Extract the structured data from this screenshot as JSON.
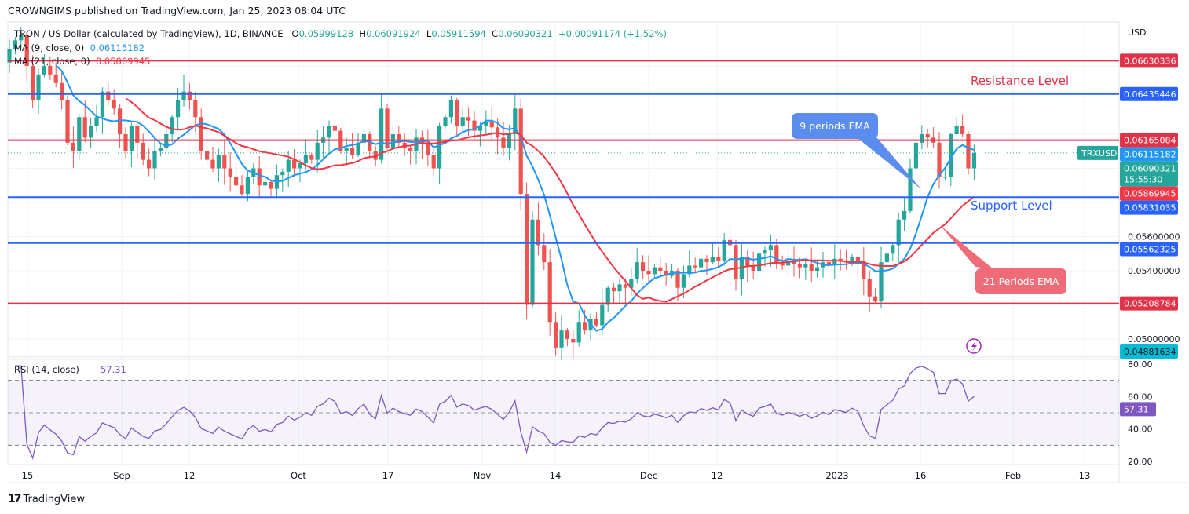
{
  "header": {
    "published": "CROWNGIMS published on TradingView.com, Jan 25, 2023 08:04 UTC"
  },
  "legend": {
    "symbol": "TRON / US Dollar (calculated by TradingView), 1D, BINANCE",
    "o_label": "O",
    "o": "0.05999128",
    "h_label": "H",
    "h": "0.06091924",
    "l_label": "L",
    "l": "0.05911594",
    "c_label": "C",
    "c": "0.06090321",
    "change": "+0.00091174 (+1.52%)",
    "ma9_label": "MA (9, close, 0)",
    "ma9": "0.06115182",
    "ma21_label": "MA (21, close, 0)",
    "ma21": "0.05869945"
  },
  "footer": {
    "brand": "TradingView"
  },
  "colors": {
    "up": "#26a69a",
    "down": "#ef5350",
    "ma9": "#2196f3",
    "ma21": "#f23645",
    "rsi": "#7e57c2",
    "blue_line": "#2962ff",
    "red_line": "#e0334a"
  },
  "chart_data": {
    "type": "candlestick",
    "currency": "USD",
    "symbol_tag": "TRXUSD",
    "last_price": "0.06090321",
    "countdown": "15:55:30",
    "price_ticks": [
      "0.05000000",
      "0.05400000",
      "0.05600000"
    ],
    "ylim": [
      0.0482,
      0.069
    ],
    "closes": [
      0.067,
      0.0675,
      0.0678,
      0.066,
      0.064,
      0.0655,
      0.066,
      0.0655,
      0.065,
      0.064,
      0.0615,
      0.061,
      0.063,
      0.0618,
      0.0625,
      0.063,
      0.0645,
      0.064,
      0.0635,
      0.062,
      0.061,
      0.0625,
      0.0615,
      0.0605,
      0.06,
      0.061,
      0.0612,
      0.062,
      0.063,
      0.064,
      0.0645,
      0.064,
      0.063,
      0.061,
      0.0605,
      0.06,
      0.0608,
      0.06,
      0.0595,
      0.059,
      0.0585,
      0.0595,
      0.06,
      0.059,
      0.0592,
      0.0588,
      0.0596,
      0.0598,
      0.0605,
      0.06,
      0.0603,
      0.0608,
      0.0605,
      0.0615,
      0.0618,
      0.0625,
      0.0622,
      0.061,
      0.0612,
      0.0608,
      0.0615,
      0.062,
      0.061,
      0.0605,
      0.0635,
      0.0612,
      0.062,
      0.0615,
      0.0612,
      0.061,
      0.0618,
      0.0615,
      0.0608,
      0.06,
      0.0625,
      0.063,
      0.064,
      0.0625,
      0.063,
      0.0628,
      0.0622,
      0.0625,
      0.0627,
      0.0624,
      0.0618,
      0.0612,
      0.062,
      0.0635,
      0.0585,
      0.052,
      0.057,
      0.0555,
      0.0545,
      0.051,
      0.0495,
      0.0505,
      0.05,
      0.0498,
      0.051,
      0.0505,
      0.0512,
      0.0508,
      0.052,
      0.053,
      0.0528,
      0.0532,
      0.053,
      0.0535,
      0.0545,
      0.054,
      0.0538,
      0.0542,
      0.054,
      0.0537,
      0.054,
      0.053,
      0.0538,
      0.0543,
      0.0542,
      0.0547,
      0.0545,
      0.0548,
      0.0546,
      0.0558,
      0.0555,
      0.0535,
      0.0548,
      0.0543,
      0.054,
      0.055,
      0.0552,
      0.0555,
      0.0545,
      0.0543,
      0.0546,
      0.0544,
      0.0542,
      0.0544,
      0.054,
      0.0542,
      0.0545,
      0.0543,
      0.0547,
      0.0546,
      0.0545,
      0.0548,
      0.0546,
      0.0535,
      0.0525,
      0.0522,
      0.0545,
      0.055,
      0.0555,
      0.057,
      0.0575,
      0.06,
      0.0615,
      0.062,
      0.0618,
      0.0615,
      0.0595,
      0.0595,
      0.062,
      0.0625,
      0.062,
      0.06,
      0.0609
    ],
    "ma_periods": [
      9,
      21
    ],
    "levels": [
      {
        "value": 0.06630336,
        "label": "0.06630336",
        "color": "red"
      },
      {
        "value": 0.06435446,
        "label": "0.06435446",
        "color": "blue"
      },
      {
        "value": 0.06165084,
        "label": "0.06165084",
        "color": "red"
      },
      {
        "value": 0.05831035,
        "label": "0.05831035",
        "color": "blue"
      },
      {
        "value": 0.05562325,
        "label": "0.05562325",
        "color": "blue"
      },
      {
        "value": 0.05208784,
        "label": "0.05208784",
        "color": "red"
      }
    ],
    "axis_price_labels": [
      {
        "value": 0.06115182,
        "label": "0.06115182",
        "color": "#2196f3"
      },
      {
        "value": 0.05869945,
        "label": "0.05869945",
        "color": "#f23645"
      },
      {
        "value": 0.04881634,
        "label": "0.04881634",
        "color": "#00bcd4"
      }
    ],
    "annotations": {
      "resistance": "Resistance Level",
      "support": "Support Level",
      "ema9": "9 periods EMA",
      "ema21": "21 Periods EMA"
    },
    "rsi": {
      "label": "RSI (14, close)",
      "value": "57.31",
      "upper": 70,
      "lower": 30,
      "ticks": [
        "80.00",
        "60.00",
        "40.00",
        "20.00"
      ]
    },
    "x_ticks": [
      "15",
      "Sep",
      "12",
      "Oct",
      "17",
      "Nov",
      "14",
      "Dec",
      "12",
      "2023",
      "16",
      "Feb",
      "13"
    ]
  }
}
